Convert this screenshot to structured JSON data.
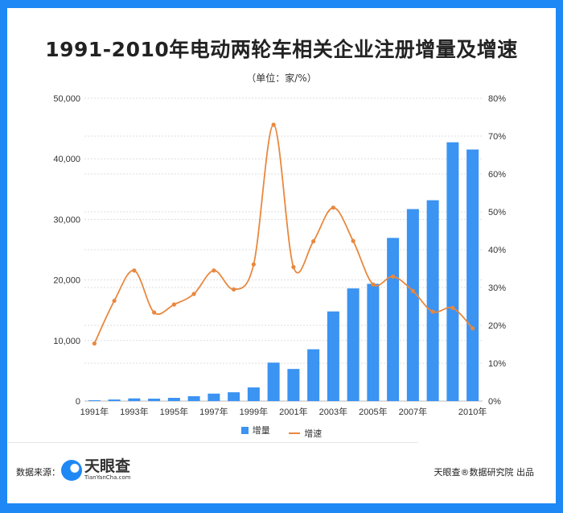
{
  "chart_data": {
    "type": "bar+line",
    "title": "1991-2010年电动两轮车相关企业注册增量及增速",
    "subtitle": "（单位：家/%）",
    "categories": [
      "1991",
      "1992",
      "1993",
      "1994",
      "1995",
      "1996",
      "1997",
      "1998",
      "1999",
      "2000",
      "2001",
      "2002",
      "2003",
      "2004",
      "2005",
      "2006",
      "2007",
      "2008",
      "2009",
      "2010"
    ],
    "x_tick_labels": [
      "1991年",
      "",
      "1993年",
      "",
      "1995年",
      "",
      "1997年",
      "",
      "1999年",
      "",
      "2001年",
      "",
      "2003年",
      "",
      "2005年",
      "",
      "2007年",
      "",
      "",
      "2010年"
    ],
    "series": [
      {
        "name": "增量",
        "type": "bar",
        "axis": "left",
        "color": "#3b93f2",
        "values": [
          130,
          260,
          440,
          400,
          530,
          800,
          1230,
          1450,
          2250,
          6350,
          5300,
          8550,
          14800,
          18600,
          19360,
          26940,
          31700,
          33160,
          42730,
          41540
        ]
      },
      {
        "name": "增速",
        "type": "line",
        "axis": "right",
        "color": "#e8883f",
        "values": [
          15.2,
          26.5,
          34.5,
          23.4,
          25.5,
          28.3,
          34.5,
          29.5,
          36.1,
          73.0,
          35.4,
          42.2,
          51.1,
          42.3,
          30.8,
          32.9,
          29.1,
          23.6,
          24.6,
          19.2
        ]
      }
    ],
    "y_left": {
      "range": [
        0,
        50000
      ],
      "ticks": [
        "0",
        "10,000",
        "20,000",
        "30,000",
        "40,000",
        "50,000"
      ]
    },
    "y_right": {
      "range": [
        0,
        80
      ],
      "ticks": [
        "0%",
        "10%",
        "20%",
        "30%",
        "40%",
        "50%",
        "60%",
        "70%",
        "80%"
      ]
    },
    "grid": true,
    "legend_placement": "bottom"
  },
  "legend": {
    "bar": "增量",
    "line": "增速"
  },
  "footer": {
    "source_label": "数据来源：",
    "logo_cn": "天眼查",
    "logo_en": "TianYanCha.com",
    "credit": "天眼查®数据研究院 出品"
  },
  "colors": {
    "frame": "#1e88f5",
    "bar": "#3b93f2",
    "line": "#e8883f"
  }
}
